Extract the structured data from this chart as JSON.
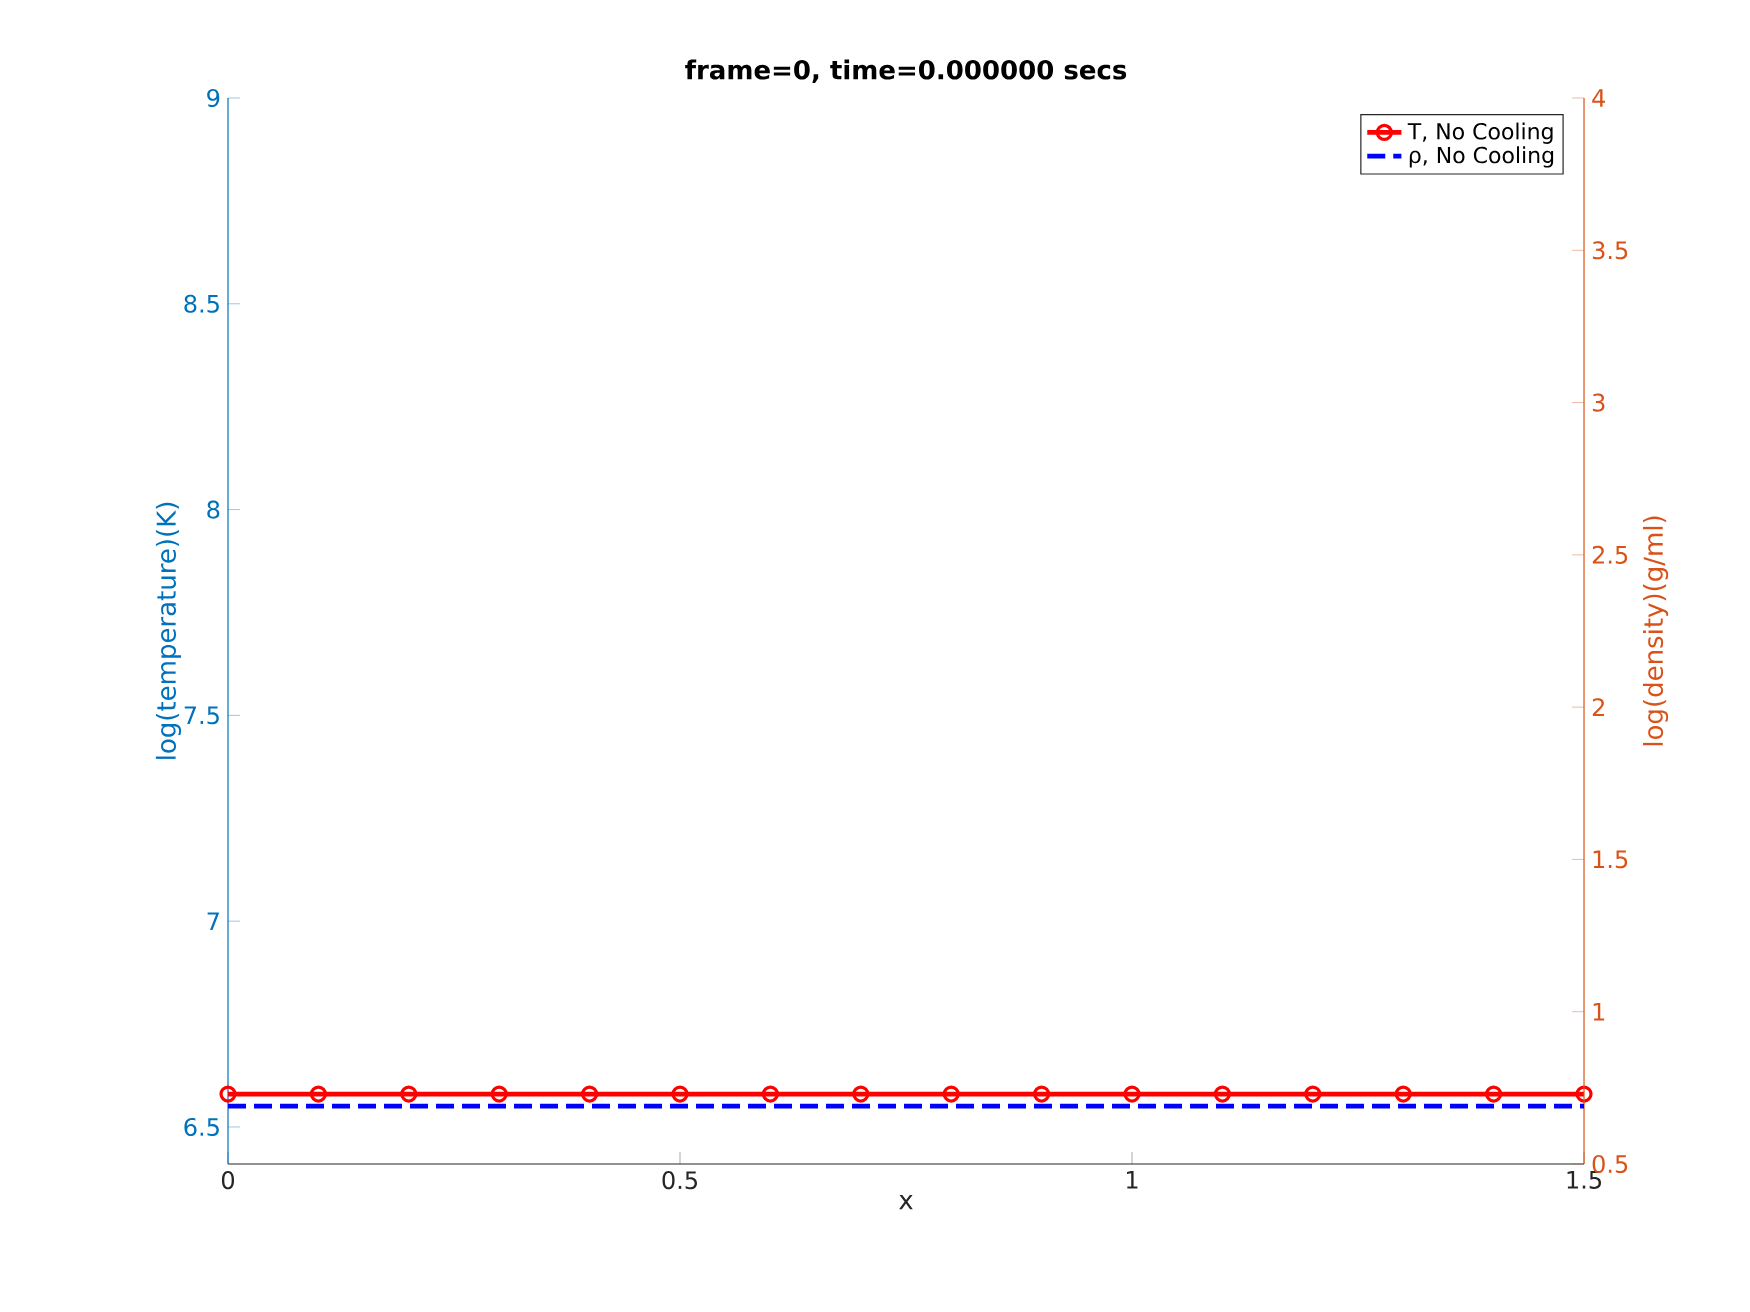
{
  "chart_data": {
    "type": "line",
    "title": "frame=0, time=0.000000 secs",
    "xlabel": "x",
    "ylabel": "log(temperature)(K)",
    "y2label": "log(density)(g/ml)",
    "x": [
      0,
      0.1,
      0.2,
      0.3,
      0.4,
      0.5,
      0.6,
      0.7,
      0.8,
      0.9,
      1.0,
      1.1,
      1.2,
      1.3,
      1.4,
      1.5
    ],
    "series": [
      {
        "name": "T, No Cooling",
        "color": "#ff0000",
        "axis": "y",
        "marker": "circle",
        "line_style": "solid",
        "values": [
          6.58,
          6.58,
          6.58,
          6.58,
          6.58,
          6.58,
          6.58,
          6.58,
          6.58,
          6.58,
          6.58,
          6.58,
          6.58,
          6.58,
          6.58,
          6.58
        ]
      },
      {
        "name": "ρ, No Cooling",
        "color": "#0000ff",
        "axis": "y2",
        "marker": "none",
        "line_style": "dashed",
        "values": [
          0.69,
          0.69,
          0.69,
          0.69,
          0.69,
          0.69,
          0.69,
          0.69,
          0.69,
          0.69,
          0.69,
          0.69,
          0.69,
          0.69,
          0.69,
          0.69
        ]
      }
    ],
    "xlim": [
      0,
      1.5
    ],
    "xticks": [
      0,
      0.5,
      1,
      1.5
    ],
    "ylim": [
      6.41,
      9
    ],
    "yticks": [
      6.5,
      7,
      7.5,
      8,
      8.5,
      9
    ],
    "y2lim": [
      0.5,
      4
    ],
    "y2ticks": [
      0.5,
      1,
      1.5,
      2,
      2.5,
      3,
      3.5,
      4
    ],
    "legend": "top right",
    "grid": false
  }
}
